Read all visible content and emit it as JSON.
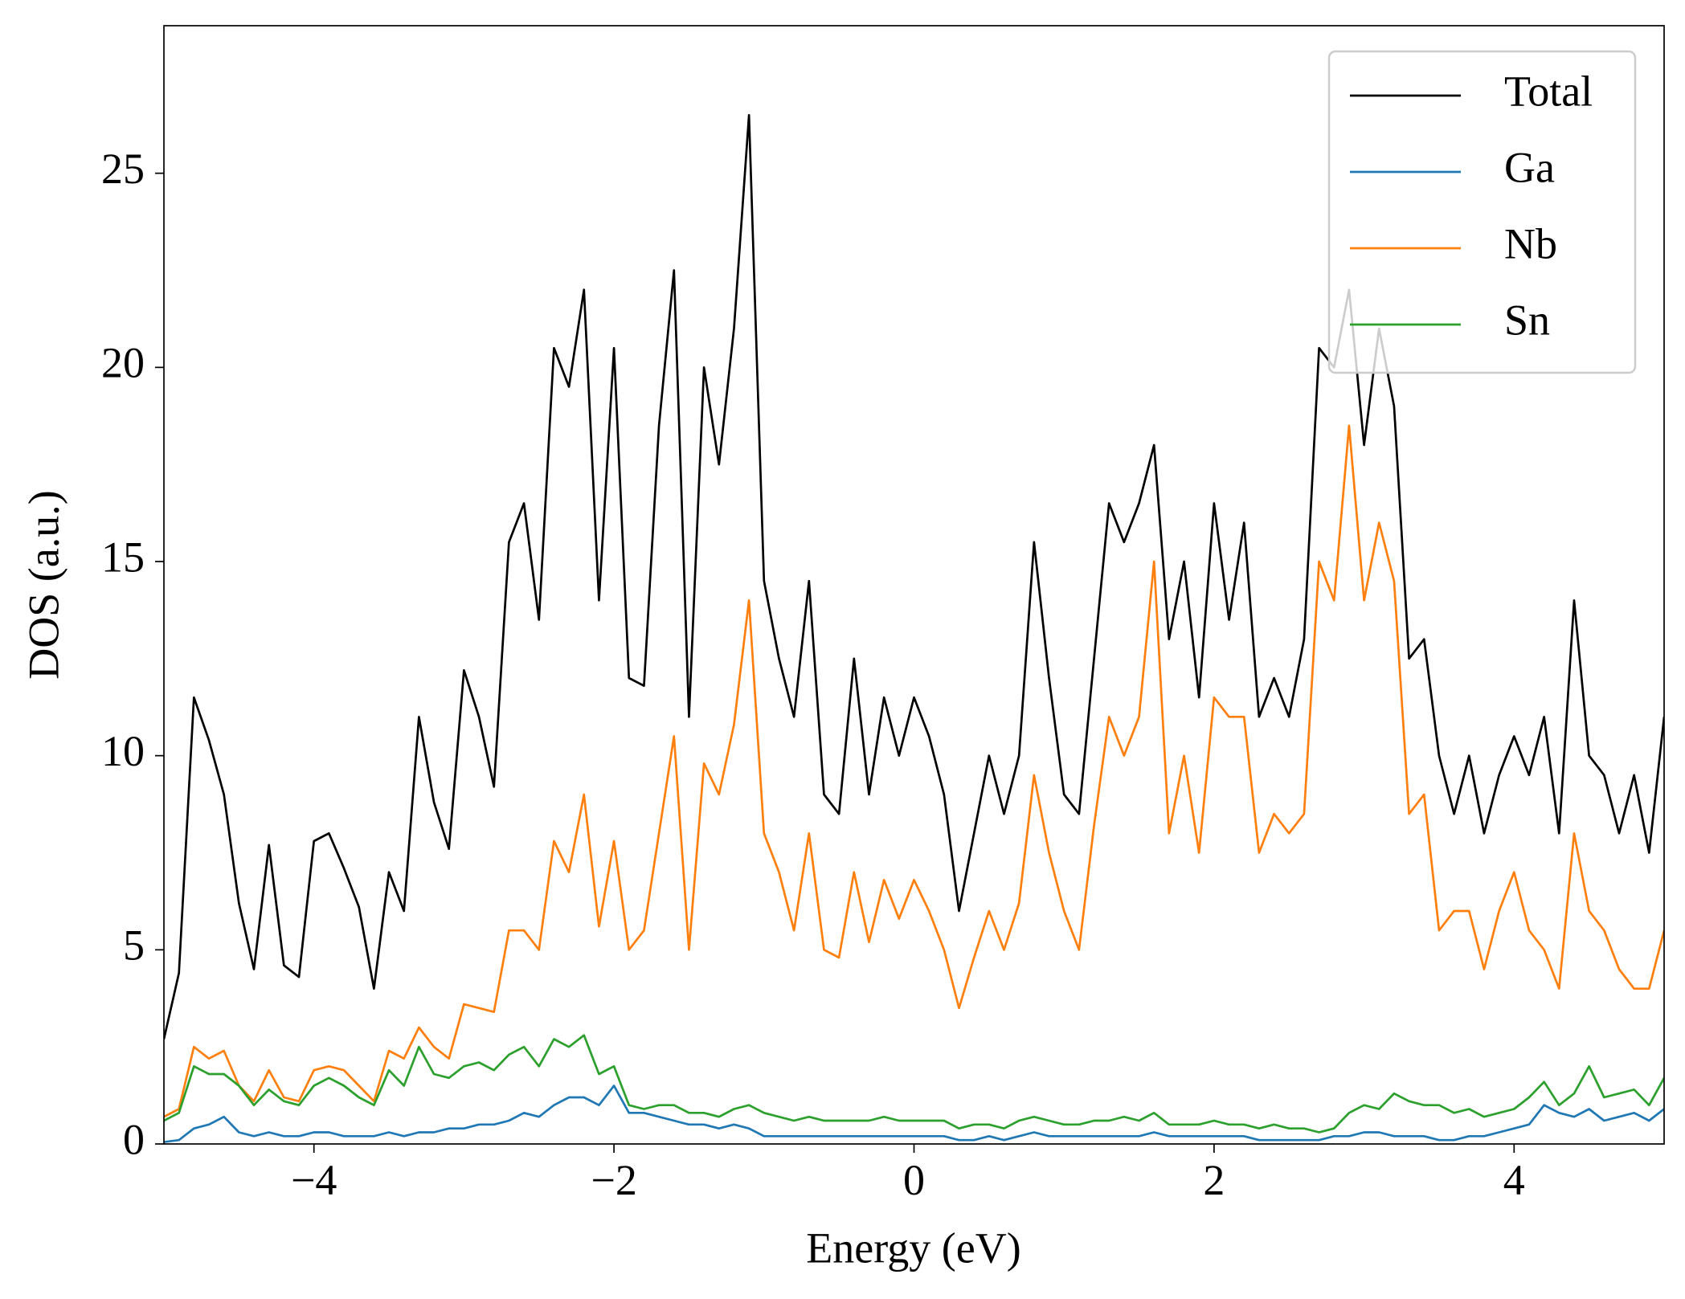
{
  "chart_data": {
    "type": "line",
    "x_label": "Energy (eV)",
    "y_label": "DOS (a.u.)",
    "xlim": [
      -5,
      5
    ],
    "ylim": [
      0,
      28.8
    ],
    "xticks": [
      {
        "value": -4,
        "label": "−4"
      },
      {
        "value": -2,
        "label": "−2"
      },
      0,
      2,
      4
    ],
    "yticks": [
      0,
      5,
      10,
      15,
      20,
      25
    ],
    "legend": "upper right",
    "x": [
      -5,
      -4.9,
      -4.8,
      -4.7,
      -4.6,
      -4.5,
      -4.4,
      -4.3,
      -4.2,
      -4.1,
      -4,
      -3.9,
      -3.8,
      -3.7,
      -3.6,
      -3.5,
      -3.4,
      -3.3,
      -3.2,
      -3.1,
      -3,
      -2.9,
      -2.8,
      -2.7,
      -2.6,
      -2.5,
      -2.4,
      -2.3,
      -2.2,
      -2.1,
      -2,
      -1.9,
      -1.8,
      -1.7,
      -1.6,
      -1.5,
      -1.4,
      -1.3,
      -1.2,
      -1.1,
      -1,
      -0.9,
      -0.8,
      -0.7,
      -0.6,
      -0.5,
      -0.4,
      -0.3,
      -0.2,
      -0.1,
      0,
      0.1,
      0.2,
      0.3,
      0.4,
      0.5,
      0.6,
      0.7,
      0.8,
      0.9,
      1,
      1.1,
      1.2,
      1.3,
      1.4,
      1.5,
      1.6,
      1.7,
      1.8,
      1.9,
      2,
      2.1,
      2.2,
      2.3,
      2.4,
      2.5,
      2.6,
      2.7,
      2.8,
      2.9,
      3,
      3.1,
      3.2,
      3.3,
      3.4,
      3.5,
      3.6,
      3.7,
      3.8,
      3.9,
      4,
      4.1,
      4.2,
      4.3,
      4.4,
      4.5,
      4.6,
      4.7,
      4.8,
      4.9,
      5
    ],
    "series": [
      {
        "name": "Total",
        "color": "#000000",
        "values": [
          2.7,
          4.4,
          11.5,
          10.4,
          9.0,
          6.2,
          4.5,
          7.7,
          4.6,
          4.3,
          7.8,
          8.0,
          7.1,
          6.1,
          4.0,
          7.0,
          6.0,
          11.0,
          8.8,
          7.6,
          12.2,
          11.0,
          9.2,
          15.5,
          16.5,
          13.5,
          20.5,
          19.5,
          22.0,
          14.0,
          20.5,
          12.0,
          11.8,
          18.5,
          22.5,
          11.0,
          20.0,
          17.5,
          21.0,
          26.5,
          14.5,
          12.5,
          11.0,
          14.5,
          9.0,
          8.5,
          12.5,
          9.0,
          11.5,
          10.0,
          11.5,
          10.5,
          9.0,
          6.0,
          8.0,
          10.0,
          8.5,
          10.0,
          15.5,
          12.0,
          9.0,
          8.5,
          12.5,
          16.5,
          15.5,
          16.5,
          18.0,
          13.0,
          15.0,
          11.5,
          16.5,
          13.5,
          16.0,
          11.0,
          12.0,
          11.0,
          13.0,
          20.5,
          20.0,
          22.0,
          18.0,
          21.0,
          19.0,
          12.5,
          13.0,
          10.0,
          8.5,
          10.0,
          8.0,
          9.5,
          10.5,
          9.5,
          11.0,
          8.0,
          14.0,
          10.0,
          9.5,
          8.0,
          9.5,
          7.5,
          11.0
        ]
      },
      {
        "name": "Ga",
        "color": "#1f77b4",
        "values": [
          0.05,
          0.1,
          0.4,
          0.5,
          0.7,
          0.3,
          0.2,
          0.3,
          0.2,
          0.2,
          0.3,
          0.3,
          0.2,
          0.2,
          0.2,
          0.3,
          0.2,
          0.3,
          0.3,
          0.4,
          0.4,
          0.5,
          0.5,
          0.6,
          0.8,
          0.7,
          1.0,
          1.2,
          1.2,
          1.0,
          1.5,
          0.8,
          0.8,
          0.7,
          0.6,
          0.5,
          0.5,
          0.4,
          0.5,
          0.4,
          0.2,
          0.2,
          0.2,
          0.2,
          0.2,
          0.2,
          0.2,
          0.2,
          0.2,
          0.2,
          0.2,
          0.2,
          0.2,
          0.1,
          0.1,
          0.2,
          0.1,
          0.2,
          0.3,
          0.2,
          0.2,
          0.2,
          0.2,
          0.2,
          0.2,
          0.2,
          0.3,
          0.2,
          0.2,
          0.2,
          0.2,
          0.2,
          0.2,
          0.1,
          0.1,
          0.1,
          0.1,
          0.1,
          0.2,
          0.2,
          0.3,
          0.3,
          0.2,
          0.2,
          0.2,
          0.1,
          0.1,
          0.2,
          0.2,
          0.3,
          0.4,
          0.5,
          1.0,
          0.8,
          0.7,
          0.9,
          0.6,
          0.7,
          0.8,
          0.6,
          0.9
        ]
      },
      {
        "name": "Nb",
        "color": "#ff7f0e",
        "values": [
          0.7,
          0.9,
          2.5,
          2.2,
          2.4,
          1.5,
          1.1,
          1.9,
          1.2,
          1.1,
          1.9,
          2.0,
          1.9,
          1.5,
          1.1,
          2.4,
          2.2,
          3.0,
          2.5,
          2.2,
          3.6,
          3.5,
          3.4,
          5.5,
          5.5,
          5.0,
          7.8,
          7.0,
          9.0,
          5.6,
          7.8,
          5.0,
          5.5,
          8.0,
          10.5,
          5.0,
          9.8,
          9.0,
          10.8,
          14.0,
          8.0,
          7.0,
          5.5,
          8.0,
          5.0,
          4.8,
          7.0,
          5.2,
          6.8,
          5.8,
          6.8,
          6.0,
          5.0,
          3.5,
          4.8,
          6.0,
          5.0,
          6.2,
          9.5,
          7.5,
          6.0,
          5.0,
          8.2,
          11.0,
          10.0,
          11.0,
          15.0,
          8.0,
          10.0,
          7.5,
          11.5,
          11.0,
          11.0,
          7.5,
          8.5,
          8.0,
          8.5,
          15.0,
          14.0,
          18.5,
          14.0,
          16.0,
          14.5,
          8.5,
          9.0,
          5.5,
          6.0,
          6.0,
          4.5,
          6.0,
          7.0,
          5.5,
          5.0,
          4.0,
          8.0,
          6.0,
          5.5,
          4.5,
          4.0,
          4.0,
          5.5
        ]
      },
      {
        "name": "Sn",
        "color": "#2ca02c",
        "values": [
          0.6,
          0.8,
          2.0,
          1.8,
          1.8,
          1.5,
          1.0,
          1.4,
          1.1,
          1.0,
          1.5,
          1.7,
          1.5,
          1.2,
          1.0,
          1.9,
          1.5,
          2.5,
          1.8,
          1.7,
          2.0,
          2.1,
          1.9,
          2.3,
          2.5,
          2.0,
          2.7,
          2.5,
          2.8,
          1.8,
          2.0,
          1.0,
          0.9,
          1.0,
          1.0,
          0.8,
          0.8,
          0.7,
          0.9,
          1.0,
          0.8,
          0.7,
          0.6,
          0.7,
          0.6,
          0.6,
          0.6,
          0.6,
          0.7,
          0.6,
          0.6,
          0.6,
          0.6,
          0.4,
          0.5,
          0.5,
          0.4,
          0.6,
          0.7,
          0.6,
          0.5,
          0.5,
          0.6,
          0.6,
          0.7,
          0.6,
          0.8,
          0.5,
          0.5,
          0.5,
          0.6,
          0.5,
          0.5,
          0.4,
          0.5,
          0.4,
          0.4,
          0.3,
          0.4,
          0.8,
          1.0,
          0.9,
          1.3,
          1.1,
          1.0,
          1.0,
          0.8,
          0.9,
          0.7,
          0.8,
          0.9,
          1.2,
          1.6,
          1.0,
          1.3,
          2.0,
          1.2,
          1.3,
          1.4,
          1.0,
          1.7
        ]
      }
    ]
  }
}
